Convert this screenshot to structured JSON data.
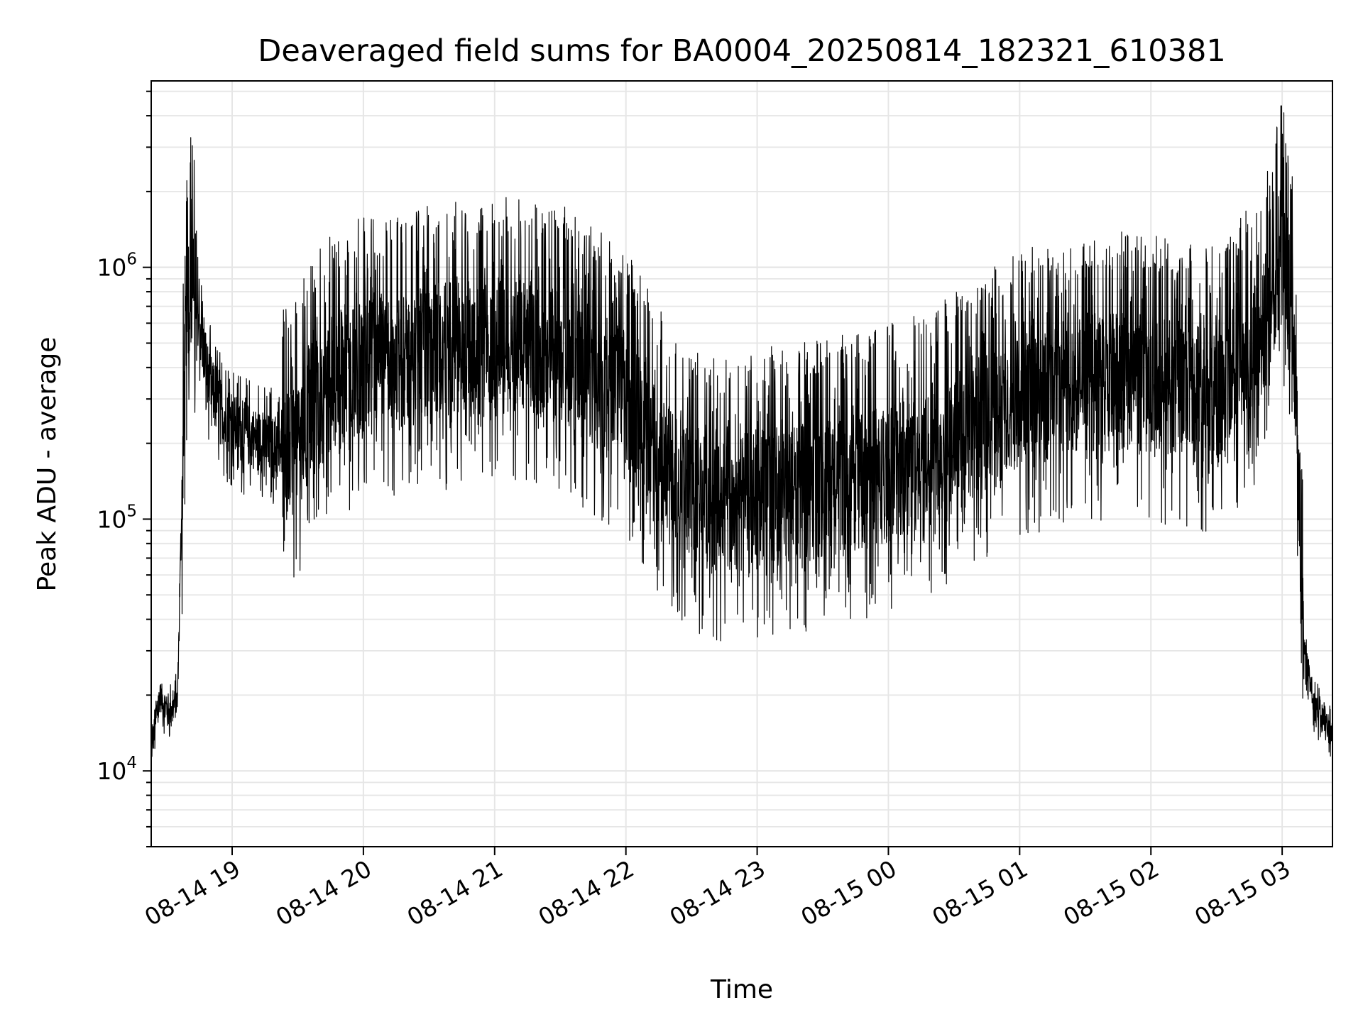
{
  "chart_data": {
    "type": "line",
    "title": "Deaveraged field sums for BA0004_20250814_182321_610381",
    "xlabel": "Time",
    "ylabel": "Peak ADU - average",
    "yscale": "log",
    "ylim": [
      5000,
      5500000
    ],
    "xlim": [
      "2025-08-14 18:23",
      "2025-08-15 03:23"
    ],
    "grid": true,
    "line_color": "#000000",
    "x_ticks": [
      "08-14 19",
      "08-14 20",
      "08-14 21",
      "08-14 22",
      "08-14 23",
      "08-15 00",
      "08-15 01",
      "08-15 02",
      "08-15 03"
    ],
    "y_ticks": [
      {
        "base": "10",
        "exp": "4",
        "value": 10000
      },
      {
        "base": "10",
        "exp": "5",
        "value": 100000
      },
      {
        "base": "10",
        "exp": "6",
        "value": 1000000
      }
    ],
    "series": [
      {
        "values_description_note": "",
        "x": [
          "2025-08-14 18:23",
          "2025-08-14 18:27",
          "2025-08-14 18:31",
          "2025-08-14 18:35",
          "2025-08-14 18:38",
          "2025-08-14 18:40",
          "2025-08-14 18:42",
          "2025-08-14 18:45",
          "2025-08-14 18:48",
          "2025-08-14 18:52",
          "2025-08-14 18:57",
          "2025-08-14 19:05",
          "2025-08-14 19:15",
          "2025-08-14 19:25",
          "2025-08-14 19:35",
          "2025-08-14 19:45",
          "2025-08-14 20:00",
          "2025-08-14 20:30",
          "2025-08-14 21:00",
          "2025-08-14 21:30",
          "2025-08-14 22:00",
          "2025-08-14 22:20",
          "2025-08-14 22:40",
          "2025-08-14 23:00",
          "2025-08-14 23:30",
          "2025-08-15 00:00",
          "2025-08-15 00:30",
          "2025-08-15 01:00",
          "2025-08-15 01:30",
          "2025-08-15 02:00",
          "2025-08-15 02:30",
          "2025-08-15 02:50",
          "2025-08-15 03:00",
          "2025-08-15 03:05",
          "2025-08-15 03:10",
          "2025-08-15 03:15",
          "2025-08-15 03:23"
        ],
        "y": [
          12000,
          20000,
          17000,
          19000,
          300000,
          800000,
          900000,
          600000,
          400000,
          300000,
          250000,
          220000,
          200000,
          180000,
          250000,
          350000,
          400000,
          450000,
          500000,
          450000,
          300000,
          150000,
          110000,
          120000,
          130000,
          150000,
          200000,
          300000,
          350000,
          350000,
          300000,
          500000,
          1200000,
          600000,
          30000,
          18000,
          14000
        ]
      }
    ]
  }
}
